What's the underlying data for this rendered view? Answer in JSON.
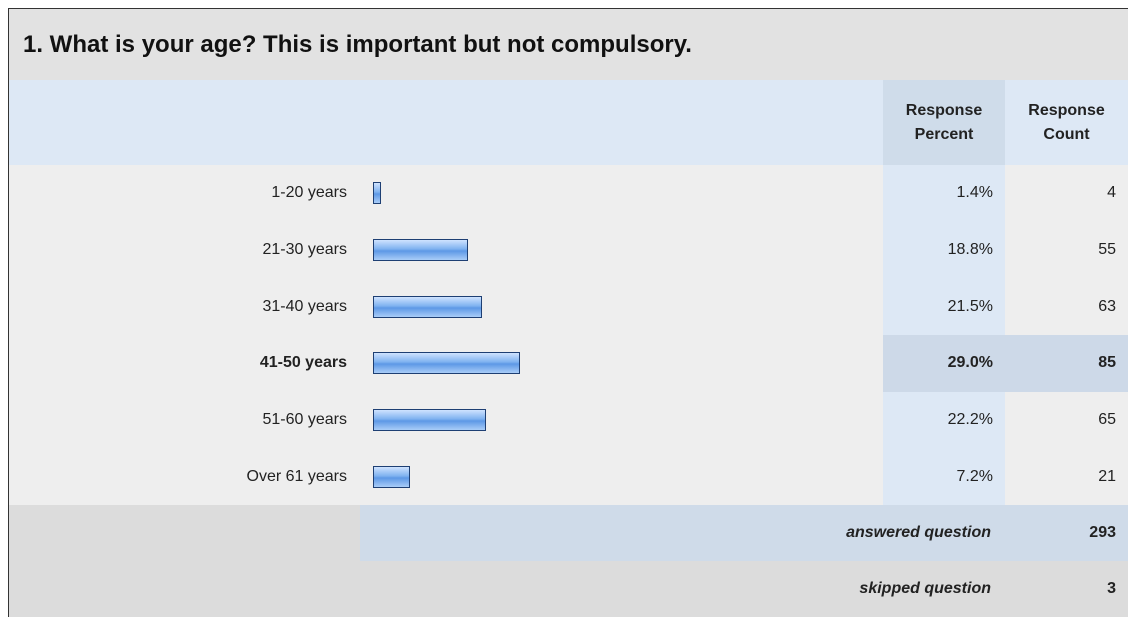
{
  "title": "1. What is your age? This is important but not compulsory.",
  "columns": {
    "percent": "Response Percent",
    "count": "Response Count"
  },
  "rows": [
    {
      "label": "1-20 years",
      "percent": 1.4,
      "percent_label": "1.4%",
      "count": 4
    },
    {
      "label": "21-30 years",
      "percent": 18.8,
      "percent_label": "18.8%",
      "count": 55
    },
    {
      "label": "31-40 years",
      "percent": 21.5,
      "percent_label": "21.5%",
      "count": 63
    },
    {
      "label": "41-50 years",
      "percent": 29.0,
      "percent_label": "29.0%",
      "count": 85,
      "bold": true
    },
    {
      "label": "51-60 years",
      "percent": 22.2,
      "percent_label": "22.2%",
      "count": 65
    },
    {
      "label": "Over 61 years",
      "percent": 7.2,
      "percent_label": "7.2%",
      "count": 21
    }
  ],
  "answered": {
    "label": "answered question",
    "count": 293
  },
  "skipped": {
    "label": "skipped question",
    "count": 3
  }
}
